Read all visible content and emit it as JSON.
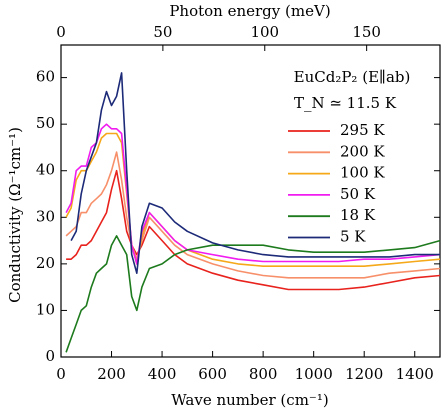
{
  "chart_data": {
    "type": "line",
    "x_label": "Wave number (cm⁻¹)",
    "x2_label": "Photon energy (meV)",
    "y_label": "Conductivity (Ω⁻¹cm⁻¹)",
    "legend_title": [
      "EuCd₂P₂ (E∥ab)",
      "T_N ≃ 11.5 K"
    ],
    "xlim": [
      0,
      1500
    ],
    "xticks": [
      0,
      200,
      400,
      600,
      800,
      1000,
      1200,
      1400
    ],
    "x2lim": [
      0,
      186
    ],
    "x2ticks": [
      0,
      50,
      100,
      150
    ],
    "ylim": [
      0,
      67
    ],
    "yticks": [
      0,
      10,
      20,
      30,
      40,
      50,
      60
    ],
    "legend": "upper right",
    "x": [
      20,
      40,
      60,
      80,
      100,
      120,
      140,
      160,
      180,
      200,
      220,
      240,
      260,
      280,
      300,
      320,
      350,
      400,
      450,
      500,
      600,
      700,
      800,
      900,
      1000,
      1100,
      1200,
      1300,
      1400,
      1500
    ],
    "series": [
      {
        "name": "295 K",
        "color": "#e8221d",
        "values": [
          21,
          21,
          22,
          24,
          24,
          25,
          27,
          29,
          31,
          36,
          40,
          34,
          27,
          24,
          22,
          24,
          28,
          25,
          22,
          20,
          18,
          16.5,
          15.5,
          14.5,
          14.5,
          14.5,
          15,
          16,
          17,
          17.5
        ]
      },
      {
        "name": "200 K",
        "color": "#f7906a",
        "values": [
          26,
          27,
          28,
          31,
          31,
          33,
          34,
          35,
          37,
          40,
          44,
          38,
          30,
          24,
          21,
          25,
          30,
          27,
          24,
          22,
          20,
          18.5,
          17.5,
          17,
          17,
          17,
          17,
          18,
          18.5,
          19
        ]
      },
      {
        "name": "100 K",
        "color": "#f5a818",
        "values": [
          30,
          32,
          38,
          40,
          40,
          42,
          44,
          47,
          48,
          48,
          48,
          46,
          35,
          24,
          20,
          26,
          31,
          28,
          25,
          23,
          21,
          20,
          19.5,
          19.5,
          19.5,
          19.5,
          19.5,
          20,
          20.5,
          21
        ]
      },
      {
        "name": "50 K",
        "color": "#f01cf0",
        "values": [
          31,
          33,
          40,
          41,
          41,
          45,
          46,
          49,
          50,
          49,
          49,
          48,
          36,
          24,
          20,
          27,
          31,
          28,
          25,
          23,
          22,
          21,
          20.5,
          20.5,
          20.5,
          20.5,
          21,
          21,
          21.5,
          22
        ]
      },
      {
        "name": "18 K",
        "color": "#1d7a1d",
        "values": [
          1,
          4,
          7,
          10,
          11,
          15,
          18,
          19,
          20,
          24,
          26,
          24,
          22,
          13,
          10,
          15,
          19,
          20,
          22,
          23,
          24,
          24,
          24,
          23,
          22.5,
          22.5,
          22.5,
          23,
          23.5,
          25
        ]
      },
      {
        "name": "5 K",
        "color": "#1c2a78",
        "values": [
          null,
          25,
          27,
          35,
          40,
          43,
          46,
          53,
          57,
          54,
          56,
          61,
          40,
          22,
          18,
          28,
          33,
          32,
          29,
          27,
          24.5,
          23,
          22,
          21.5,
          21.5,
          21.5,
          21.5,
          21.5,
          22,
          22
        ]
      }
    ]
  }
}
